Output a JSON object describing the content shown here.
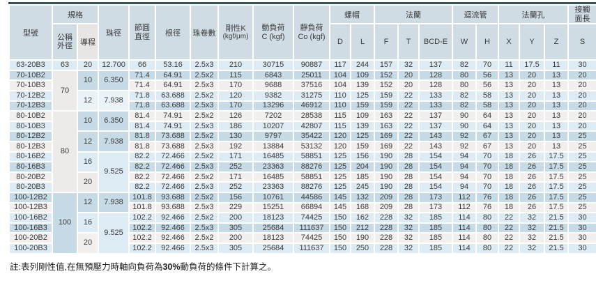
{
  "colors": {
    "top_line": "#33525e",
    "header_bg": "#cfdce4",
    "header_gray_bg": "#e8e6e4",
    "row_light_blue": "#ddecf4",
    "row_medium_blue": "#c6dbe6",
    "row_off_white": "#f3efed",
    "merged_gray": "#ecebe9",
    "merged_pale": "#e9f3f8",
    "text": "#3a3a3a"
  },
  "header": {
    "model": "型號",
    "spec_group": "規格",
    "od_line1": "公稱",
    "od_line2": "外徑",
    "lead": "導程",
    "ball_dia": "珠徑",
    "pcd_line1": "節圓",
    "pcd_line2": "直徑",
    "root_dia": "根徑",
    "ball_turns": "珠卷數",
    "stiffness_line1": "剛性K",
    "stiffness_line2": "(kgf/μm)",
    "dyn_line1": "動負荷",
    "dyn_line2": "C (kgf)",
    "static_line1": "靜負荷",
    "static_line2": "Co (kgf)",
    "nut_group": "螺帽",
    "flange_group": "法蘭",
    "tube_group": "迴流管",
    "hole_group": "法蘭孔",
    "contact_line1": "接觸",
    "contact_line2": "面長",
    "sub": [
      "D",
      "L",
      "F",
      "T",
      "BCD-E",
      "W",
      "H",
      "X",
      "Y",
      "Z",
      "S"
    ]
  },
  "rows": [
    {
      "model": "63-20B3",
      "stripe": "lb",
      "spec": [
        {
          "v": "63",
          "rs": 1,
          "cls": "lb"
        },
        {
          "v": "20",
          "rs": 1,
          "cls": "lb"
        },
        {
          "v": "12.700",
          "rs": 1,
          "cls": "lb"
        }
      ],
      "vals": [
        "66",
        "53.16",
        "2.5x3",
        "210",
        "30715",
        "90887",
        "117",
        "244",
        "157",
        "32",
        "137",
        "82",
        "70",
        "11",
        "17.5",
        "11",
        "30"
      ]
    },
    {
      "model": "70-10B2",
      "stripe": "mb",
      "spec": [
        {
          "v": "70",
          "rs": 4,
          "cls": "g"
        },
        {
          "v": "10",
          "rs": 2,
          "cls": "mb"
        },
        {
          "v": "6.350",
          "rs": 2,
          "cls": "mb"
        }
      ],
      "vals": [
        "71.4",
        "64.91",
        "2.5x2",
        "115",
        "6843",
        "25011",
        "104",
        "109",
        "152",
        "20",
        "128",
        "80",
        "56",
        "13",
        "20",
        "13",
        "20"
      ]
    },
    {
      "model": "70-10B3",
      "stripe": "w",
      "spec": [],
      "vals": [
        "71.4",
        "64.91",
        "2.5x3",
        "170",
        "9688",
        "37516",
        "104",
        "139",
        "152",
        "20",
        "128",
        "80",
        "56",
        "13",
        "20",
        "13",
        "20"
      ]
    },
    {
      "model": "70-12B2",
      "stripe": "lb",
      "spec": [
        {
          "v": "12",
          "rs": 2,
          "cls": "p"
        },
        {
          "v": "7.938",
          "rs": 2,
          "cls": "p"
        }
      ],
      "vals": [
        "71.8",
        "63.688",
        "2.5x2",
        "120",
        "9382",
        "31275",
        "110",
        "125",
        "159",
        "22",
        "133",
        "82",
        "58",
        "13",
        "20",
        "13",
        "20"
      ]
    },
    {
      "model": "70-12B3",
      "stripe": "mb",
      "spec": [],
      "vals": [
        "71.8",
        "63.688",
        "2.5x3",
        "170",
        "13296",
        "46912",
        "110",
        "159",
        "159",
        "22",
        "133",
        "82",
        "58",
        "13",
        "20",
        "13",
        "20"
      ]
    },
    {
      "model": "80-10B2",
      "stripe": "w",
      "spec": [
        {
          "v": "80",
          "rs": 8,
          "cls": "g"
        },
        {
          "v": "10",
          "rs": 2,
          "cls": "mb"
        },
        {
          "v": "6.350",
          "rs": 2,
          "cls": "mb"
        }
      ],
      "vals": [
        "81.4",
        "74.91",
        "2.5x2",
        "126",
        "7202",
        "28538",
        "115",
        "109",
        "163",
        "22",
        "137",
        "90",
        "64",
        "13",
        "20",
        "13",
        "20"
      ]
    },
    {
      "model": "80-10B3",
      "stripe": "lb",
      "spec": [],
      "vals": [
        "81.4",
        "74.91",
        "2.5x3",
        "186",
        "10207",
        "42807",
        "115",
        "139",
        "163",
        "22",
        "137",
        "90",
        "64",
        "13",
        "20",
        "13",
        "20"
      ]
    },
    {
      "model": "80-12B2",
      "stripe": "mb",
      "spec": [
        {
          "v": "12",
          "rs": 2,
          "cls": "mb"
        },
        {
          "v": "7.938",
          "rs": 2,
          "cls": "mb"
        }
      ],
      "vals": [
        "81.8",
        "73.688",
        "2.5x2",
        "130",
        "9797",
        "35422",
        "120",
        "125",
        "169",
        "22",
        "143",
        "92",
        "67",
        "13",
        "20",
        "13",
        "25"
      ]
    },
    {
      "model": "80-12B3",
      "stripe": "w",
      "spec": [],
      "vals": [
        "81.8",
        "73.688",
        "2.5x3",
        "192",
        "13884",
        "53132",
        "120",
        "159",
        "169",
        "22",
        "143",
        "92",
        "67",
        "13",
        "20",
        "13",
        "25"
      ]
    },
    {
      "model": "80-16B2",
      "stripe": "lb",
      "spec": [
        {
          "v": "16",
          "rs": 2,
          "cls": "lb"
        },
        {
          "v": "9.525",
          "rs": 4,
          "cls": "lb"
        }
      ],
      "vals": [
        "82.2",
        "72.466",
        "2.5x2",
        "171",
        "16485",
        "58851",
        "125",
        "156",
        "190",
        "28",
        "154",
        "94",
        "70",
        "18",
        "26",
        "17.5",
        "25"
      ]
    },
    {
      "model": "80-16B3",
      "stripe": "mb",
      "spec": [],
      "vals": [
        "82.2",
        "72.466",
        "2.5x3",
        "252",
        "23363",
        "88276",
        "125",
        "204",
        "190",
        "28",
        "154",
        "94",
        "70",
        "18",
        "26",
        "17.5",
        "25"
      ]
    },
    {
      "model": "80-20B2",
      "stripe": "w",
      "spec": [
        {
          "v": "20",
          "rs": 2,
          "cls": "g"
        }
      ],
      "vals": [
        "82.2",
        "72.466",
        "2.5x2",
        "171",
        "16485",
        "58851",
        "125",
        "185",
        "190",
        "28",
        "154",
        "94",
        "70",
        "18",
        "26",
        "17.5",
        "25"
      ]
    },
    {
      "model": "80-20B3",
      "stripe": "lb",
      "spec": [],
      "vals": [
        "82.2",
        "72.466",
        "2.5x3",
        "252",
        "23363",
        "88276",
        "125",
        "245",
        "190",
        "28",
        "154",
        "94",
        "70",
        "18",
        "26",
        "17.5",
        "25"
      ]
    },
    {
      "model": "100-12B2",
      "stripe": "mb",
      "spec": [
        {
          "v": "100",
          "rs": 6,
          "cls": "mb"
        },
        {
          "v": "12",
          "rs": 2,
          "cls": "mb"
        },
        {
          "v": "7.938",
          "rs": 2,
          "cls": "mb"
        }
      ],
      "vals": [
        "101.8",
        "93.688",
        "2.5x2",
        "156",
        "10761",
        "44586",
        "145",
        "132",
        "209",
        "28",
        "173",
        "112",
        "76",
        "18",
        "26",
        "17.5",
        "25"
      ]
    },
    {
      "model": "100-12B3",
      "stripe": "w",
      "spec": [],
      "vals": [
        "101.8",
        "93.688",
        "2.5x3",
        "229",
        "15251",
        "66894",
        "145",
        "168",
        "209",
        "28",
        "173",
        "112",
        "76",
        "18",
        "26",
        "17.5",
        "25"
      ]
    },
    {
      "model": "100-16B2",
      "stripe": "lb",
      "spec": [
        {
          "v": "16",
          "rs": 2,
          "cls": "lb"
        },
        {
          "v": "9.525",
          "rs": 4,
          "cls": "lb"
        }
      ],
      "vals": [
        "102.2",
        "92.466",
        "2.5x2",
        "200",
        "18123",
        "74425",
        "150",
        "162",
        "228",
        "32",
        "185",
        "114",
        "80",
        "22",
        "32",
        "21.5",
        "30"
      ]
    },
    {
      "model": "100-16B3",
      "stripe": "mb",
      "spec": [],
      "vals": [
        "102.2",
        "92.466",
        "2.5x3",
        "305",
        "25684",
        "111637",
        "150",
        "212",
        "228",
        "32",
        "185",
        "114",
        "80",
        "22",
        "32",
        "21.5",
        "30"
      ]
    },
    {
      "model": "100-20B2",
      "stripe": "w",
      "spec": [
        {
          "v": "20",
          "rs": 2,
          "cls": "w"
        }
      ],
      "vals": [
        "102.2",
        "92.466",
        "2.5x2",
        "200",
        "18123",
        "74425",
        "150",
        "190",
        "228",
        "32",
        "185",
        "114",
        "80",
        "22",
        "32",
        "21.5",
        "30"
      ]
    },
    {
      "model": "100-20B3",
      "stripe": "lb",
      "spec": [],
      "vals": [
        "102.2",
        "92.466",
        "2.5x3",
        "305",
        "25684",
        "111637",
        "150",
        "250",
        "228",
        "32",
        "185",
        "114",
        "80",
        "22",
        "32",
        "21.5",
        "30"
      ]
    }
  ],
  "note": {
    "prefix": "註:表列剛性值,在無預壓力時軸向負荷為",
    "bold": "30%",
    "suffix": "動負荷的條件下計算之。"
  }
}
